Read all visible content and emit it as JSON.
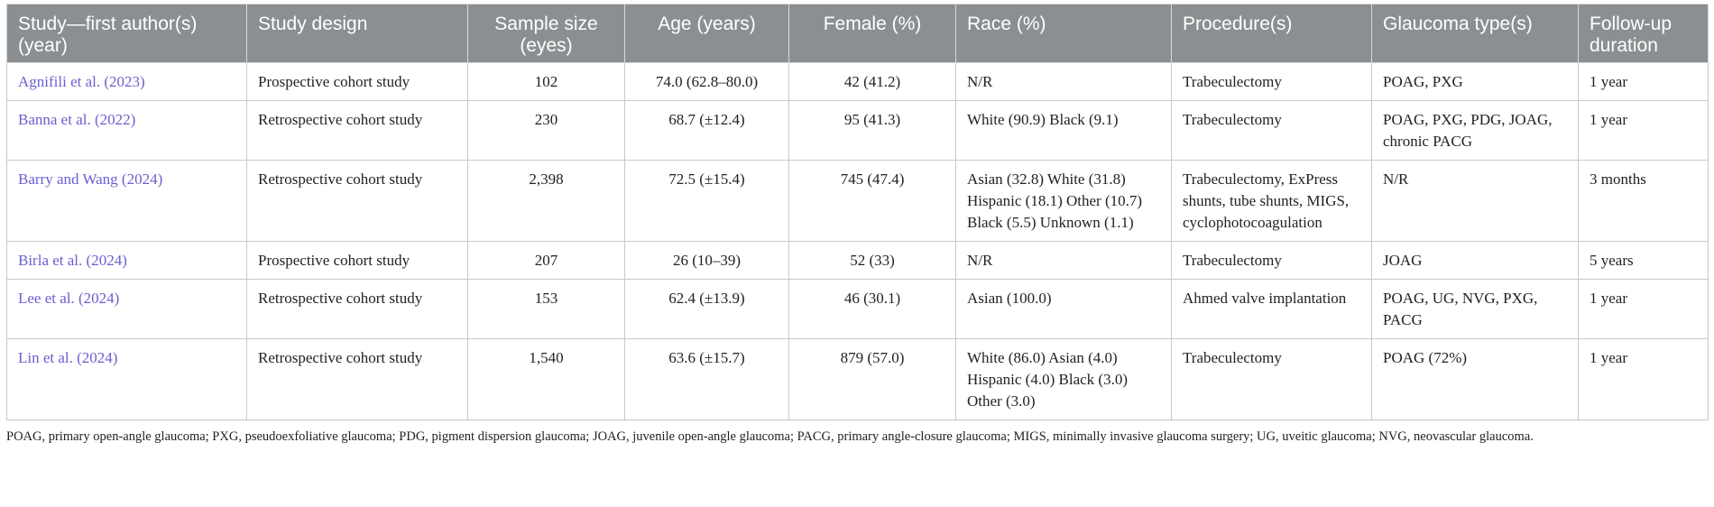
{
  "headers": [
    "Study—first author(s) (year)",
    "Study design",
    "Sample size (eyes)",
    "Age (years)",
    "Female (%)",
    "Race (%)",
    "Procedure(s)",
    "Glaucoma type(s)",
    "Follow-up duration"
  ],
  "rows": [
    {
      "study": "Agnifili et al. (2023)",
      "design": "Prospective cohort study",
      "sample": "102",
      "age": "74.0 (62.8–80.0)",
      "female": "42 (41.2)",
      "race": "N/R",
      "procedure": "Trabeculectomy",
      "glaucoma": "POAG, PXG",
      "followup": "1 year"
    },
    {
      "study": "Banna et al. (2022)",
      "design": "Retrospective cohort study",
      "sample": "230",
      "age": "68.7 (±12.4)",
      "female": "95 (41.3)",
      "race": "White (90.9) Black (9.1)",
      "procedure": "Trabeculectomy",
      "glaucoma": "POAG, PXG, PDG, JOAG, chronic PACG",
      "followup": "1 year"
    },
    {
      "study": "Barry and Wang (2024)",
      "design": "Retrospective cohort study",
      "sample": "2,398",
      "age": "72.5 (±15.4)",
      "female": "745 (47.4)",
      "race": "Asian (32.8) White (31.8) Hispanic (18.1) Other (10.7) Black (5.5) Unknown (1.1)",
      "procedure": "Trabeculectomy, ExPress shunts, tube shunts, MIGS, cyclophotocoagulation",
      "glaucoma": "N/R",
      "followup": "3 months"
    },
    {
      "study": "Birla et al. (2024)",
      "design": "Prospective cohort study",
      "sample": "207",
      "age": "26 (10–39)",
      "female": "52 (33)",
      "race": "N/R",
      "procedure": "Trabeculectomy",
      "glaucoma": "JOAG",
      "followup": "5 years"
    },
    {
      "study": "Lee et al. (2024)",
      "design": "Retrospective cohort study",
      "sample": "153",
      "age": "62.4 (±13.9)",
      "female": "46 (30.1)",
      "race": "Asian (100.0)",
      "procedure": "Ahmed valve implantation",
      "glaucoma": "POAG, UG, NVG, PXG, PACG",
      "followup": "1 year"
    },
    {
      "study": "Lin et al. (2024)",
      "design": "Retrospective cohort study",
      "sample": "1,540",
      "age": "63.6 (±15.7)",
      "female": "879 (57.0)",
      "race": "White (86.0) Asian (4.0) Hispanic (4.0) Black (3.0) Other (3.0)",
      "procedure": "Trabeculectomy",
      "glaucoma": "POAG (72%)",
      "followup": "1 year"
    }
  ],
  "footnote": "POAG, primary open-angle glaucoma; PXG, pseudoexfoliative glaucoma; PDG, pigment dispersion glaucoma; JOAG, juvenile open-angle glaucoma; PACG, primary angle-closure glaucoma; MIGS, minimally invasive glaucoma surgery; UG, uveitic glaucoma; NVG, neovascular glaucoma.",
  "colors": {
    "header_bg": "#8c8f91",
    "header_text": "#ffffff",
    "link_text": "#6a5fd0",
    "border": "#c8c8c8"
  }
}
